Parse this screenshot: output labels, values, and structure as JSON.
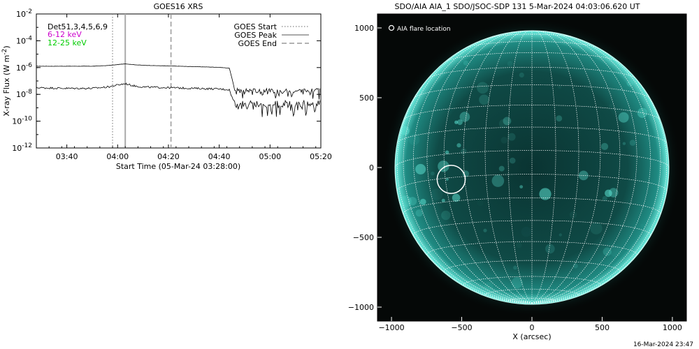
{
  "chart_data": [
    {
      "type": "line",
      "title": "GOES16 XRS",
      "xlabel": "Start Time (05-Mar-24 03:28:00)",
      "ylabel": "X-ray Flux (W m",
      "ylabel_exponent": "-2",
      "ylabel_close": ")",
      "log_scale_y": true,
      "xlim": [
        "03:28",
        "05:20"
      ],
      "ylim": [
        1e-12,
        0.01
      ],
      "x_ticks": [
        "03:40",
        "04:00",
        "04:20",
        "04:40",
        "05:00",
        "05:20"
      ],
      "y_ticks": [
        {
          "base": "10",
          "exp": "-12",
          "value": -12
        },
        {
          "base": "10",
          "exp": "-10",
          "value": -10
        },
        {
          "base": "10",
          "exp": "-8",
          "value": -8
        },
        {
          "base": "10",
          "exp": "-6",
          "value": -6
        },
        {
          "base": "10",
          "exp": "-4",
          "value": -4
        },
        {
          "base": "10",
          "exp": "-2",
          "value": -2
        }
      ],
      "detectors_label": "Det51,3,4,5,6,9",
      "series": [
        {
          "name": "6-12 keV",
          "color": "#cc00cc",
          "x": [
            "03:28",
            "03:40",
            "03:50",
            "03:56",
            "04:00",
            "04:03",
            "04:06",
            "04:10",
            "04:20",
            "04:30",
            "04:40",
            "04:44",
            "04:45",
            "04:46",
            "04:48",
            "05:00",
            "05:10",
            "05:20"
          ],
          "log10_y": [
            -5.9,
            -5.9,
            -5.9,
            -5.85,
            -5.78,
            -5.72,
            -5.78,
            -5.83,
            -5.88,
            -5.93,
            -5.98,
            -6.05,
            -6.8,
            -7.6,
            -7.7,
            -7.7,
            -7.7,
            -7.7
          ]
        },
        {
          "name": "12-25 keV",
          "color": "#00cc00",
          "x": [
            "03:28",
            "03:40",
            "03:50",
            "03:56",
            "04:00",
            "04:03",
            "04:06",
            "04:10",
            "04:20",
            "04:30",
            "04:40",
            "04:44",
            "04:45",
            "04:46",
            "04:48",
            "05:00",
            "05:10",
            "05:20"
          ],
          "log10_y": [
            -7.5,
            -7.55,
            -7.55,
            -7.45,
            -7.3,
            -7.2,
            -7.35,
            -7.45,
            -7.5,
            -7.55,
            -7.6,
            -7.65,
            -8.2,
            -8.6,
            -8.7,
            -8.7,
            -8.7,
            -8.7
          ]
        }
      ],
      "markers": [
        {
          "name": "GOES Start",
          "time": "03:58",
          "style": "dotted"
        },
        {
          "name": "GOES Peak",
          "time": "04:03",
          "style": "solid"
        },
        {
          "name": "GOES End",
          "time": "04:21",
          "style": "dashed"
        }
      ],
      "legend_position": "top-right"
    },
    {
      "type": "heatmap",
      "title": "SDO/AIA AIA_1 SDO/JSOC-SDP 131  5-Mar-2024 04:03:06.620 UT",
      "xlabel": "X (arcsec)",
      "ylabel": "",
      "xlim": [
        -1100,
        1100
      ],
      "ylim": [
        -1100,
        1100
      ],
      "x_ticks": [
        -1000,
        -500,
        0,
        500,
        1000
      ],
      "y_ticks": [
        -1000,
        -500,
        0,
        500,
        1000
      ],
      "solar_radius_arcsec": 975,
      "annotation": "AIA flare location",
      "flare_location": {
        "x": -575,
        "y": -85,
        "r": 100
      },
      "colormap_color": "#40e0d0",
      "grid_lines": true
    }
  ],
  "footer_timestamp": "16-Mar-2024 23:47"
}
